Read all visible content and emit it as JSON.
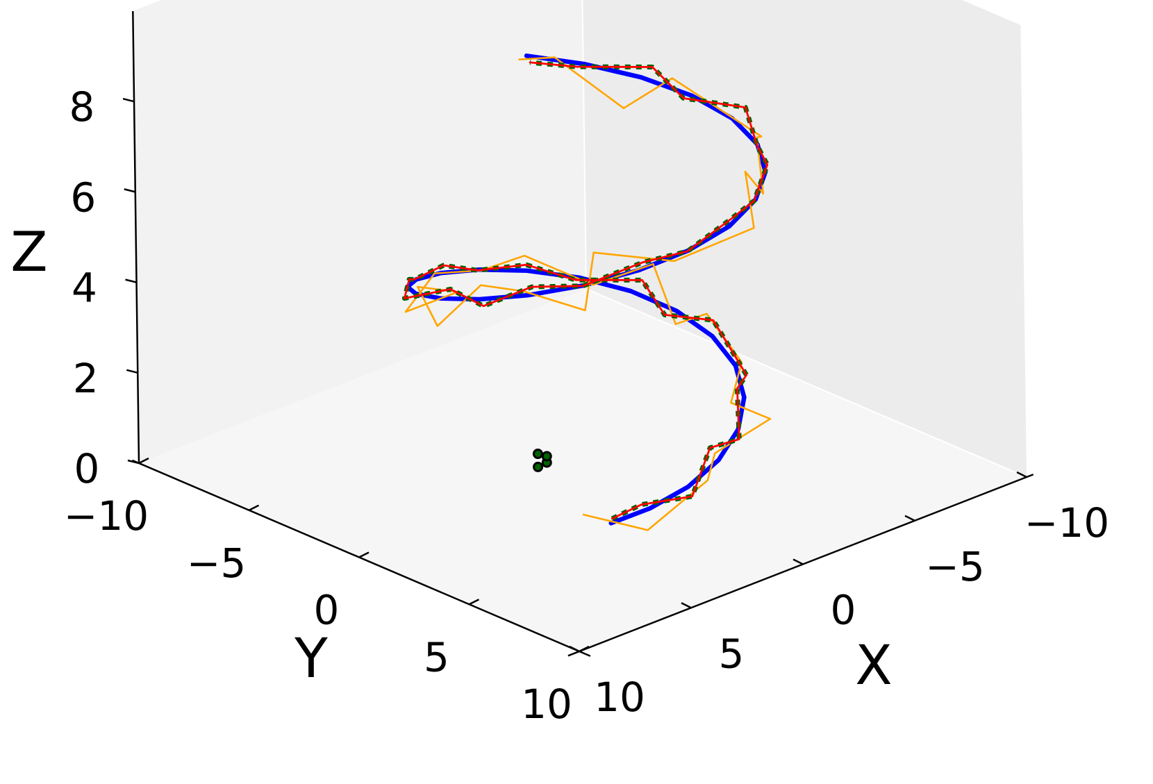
{
  "chart_data": {
    "type": "line3d",
    "xlabel": "X",
    "ylabel": "Y",
    "zlabel": "Z",
    "x_ticks": [
      "−10",
      "−5",
      "0",
      "5",
      "10"
    ],
    "y_ticks": [
      "−10",
      "−5",
      "0",
      "5",
      "10"
    ],
    "z_ticks": [
      "0",
      "2",
      "4",
      "6",
      "8"
    ],
    "xlim": [
      -10,
      10
    ],
    "ylim": [
      -10,
      10
    ],
    "zlim": [
      0,
      9
    ],
    "grid": false,
    "legend": "none",
    "colors": {
      "true_path": "#0000ff",
      "noisy_observations": "#ffa500",
      "filtered_estimate": "#ff0000",
      "smoothed_estimate": "#006400",
      "marker": "#000000",
      "pane_back": "#f2f2f2",
      "pane_side": "#ececec",
      "pane_floor": "#f6f6f6"
    },
    "series": [
      {
        "style": "solid-thick",
        "color": "#0000ff",
        "x": [
          2.98,
          1.87,
          0.42,
          -1.15,
          -2.66,
          -3.95,
          -4.87,
          -5.32,
          -5.25,
          -4.65,
          -3.57,
          -2.11,
          -0.44,
          1.26,
          2.8,
          4.03,
          4.83,
          5.12,
          4.88,
          4.13,
          2.93,
          1.42,
          -0.24,
          -1.89,
          -3.35,
          -4.49,
          -5.19,
          -5.4,
          -5.09,
          -4.29,
          -3.07,
          -1.56
        ],
        "y": [
          4.32,
          4.97,
          5.23,
          5.03,
          4.39,
          3.36,
          2.04,
          0.54,
          -1.01,
          -2.47,
          -3.7,
          -4.59,
          -5.05,
          -5.06,
          -4.61,
          -3.76,
          -2.56,
          -1.13,
          0.39,
          1.85,
          3.13,
          4.12,
          4.73,
          4.9,
          4.62,
          3.92,
          2.85,
          1.5,
          0.0,
          -1.5,
          -2.85,
          -3.92
        ],
        "z": [
          0.3,
          0.55,
          0.8,
          1.05,
          1.3,
          1.55,
          1.8,
          2.05,
          2.3,
          2.55,
          2.8,
          3.05,
          3.3,
          3.55,
          3.8,
          4.05,
          4.3,
          4.55,
          4.8,
          5.05,
          5.3,
          5.55,
          5.8,
          6.05,
          6.3,
          6.55,
          6.8,
          7.05,
          7.3,
          7.55,
          7.8,
          8.05
        ]
      },
      {
        "style": "solid-thin",
        "color": "#ffa500",
        "x": [
          3.4,
          2.5,
          0.1,
          -1.8,
          -3.5,
          -4.2,
          -4.7,
          -5.8,
          -5.0,
          -5.3,
          -3.0,
          -2.5,
          0.3,
          1.8,
          3.6,
          3.5,
          4.9,
          5.6,
          5.3,
          3.9,
          3.5,
          2.6,
          -0.3,
          -2.5,
          -3.9,
          -4.1,
          -5.8,
          -6.2,
          -4.6,
          -3.3,
          -2.5,
          -1.8
        ],
        "y": [
          3.5,
          5.5,
          5.8,
          4.2,
          5.0,
          2.5,
          2.5,
          -0.2,
          -0.8,
          -2.1,
          -2.5,
          -5.1,
          -4.2,
          -4.8,
          -4.3,
          -2.0,
          -2.4,
          -0.8,
          0.9,
          1.4,
          3.8,
          3.3,
          4.0,
          5.4,
          3.6,
          4.2,
          2.2,
          2.0,
          -0.4,
          -1.3,
          -3.6,
          -4.5
        ],
        "z": [
          0.4,
          0.3,
          1.0,
          0.9,
          1.5,
          1.2,
          2.0,
          2.3,
          2.1,
          3.1,
          3.0,
          3.2,
          3.6,
          3.7,
          3.3,
          4.2,
          4.5,
          4.1,
          5.3,
          5.0,
          5.0,
          6.0,
          5.4,
          6.0,
          6.6,
          6.2,
          6.7,
          6.6,
          7.7,
          7.1,
          7.9,
          7.8
        ]
      },
      {
        "style": "solid-medium",
        "color": "#ff0000",
        "x": [
          3.2,
          2.0,
          0.6,
          -1.0,
          -2.4,
          -3.9,
          -5.1,
          -5.6,
          -5.0,
          -4.9,
          -3.6,
          -1.8,
          -0.6,
          1.4,
          2.6,
          4.2,
          5.1,
          5.0,
          4.9,
          4.2,
          2.7,
          1.5,
          -0.4,
          -1.6,
          -3.5,
          -4.3,
          -5.4,
          -5.7,
          -5.0,
          -4.5,
          -3.0,
          -1.4
        ],
        "y": [
          4.6,
          4.7,
          5.6,
          4.8,
          4.7,
          3.1,
          2.3,
          0.3,
          -1.3,
          -2.2,
          -3.9,
          -4.3,
          -5.3,
          -4.8,
          -4.9,
          -3.5,
          -2.8,
          -0.8,
          0.6,
          2.1,
          2.9,
          4.4,
          4.5,
          5.2,
          4.4,
          4.2,
          2.6,
          1.8,
          -0.3,
          -1.2,
          -3.1,
          -3.6
        ],
        "z": [
          0.5,
          0.6,
          0.7,
          1.3,
          1.2,
          1.7,
          1.6,
          2.3,
          2.2,
          2.8,
          2.7,
          3.3,
          3.2,
          3.8,
          3.7,
          4.3,
          4.2,
          4.8,
          4.7,
          5.3,
          5.2,
          5.8,
          5.7,
          6.3,
          6.2,
          6.8,
          6.7,
          7.3,
          7.2,
          7.8,
          7.7,
          8.0
        ]
      },
      {
        "style": "dotted-thick",
        "color": "#006400",
        "x": [
          3.2,
          2.0,
          0.6,
          -1.0,
          -2.4,
          -3.9,
          -5.1,
          -5.6,
          -5.0,
          -4.9,
          -3.6,
          -1.8,
          -0.6,
          1.4,
          2.6,
          4.2,
          5.1,
          5.0,
          4.9,
          4.2,
          2.7,
          1.5,
          -0.4,
          -1.6,
          -3.5,
          -4.3,
          -5.4,
          -5.7,
          -5.0,
          -4.5,
          -3.0,
          -1.4
        ],
        "y": [
          4.6,
          4.7,
          5.6,
          4.8,
          4.7,
          3.1,
          2.3,
          0.3,
          -1.3,
          -2.2,
          -3.9,
          -4.3,
          -5.3,
          -4.8,
          -4.9,
          -3.5,
          -2.8,
          -0.8,
          0.6,
          2.1,
          2.9,
          4.4,
          4.5,
          5.2,
          4.4,
          4.2,
          2.6,
          1.8,
          -0.3,
          -1.2,
          -3.1,
          -3.6
        ],
        "z": [
          0.5,
          0.6,
          0.7,
          1.3,
          1.2,
          1.7,
          1.6,
          2.3,
          2.2,
          2.8,
          2.7,
          3.3,
          3.2,
          3.8,
          3.7,
          4.3,
          4.2,
          4.8,
          4.7,
          5.3,
          5.2,
          5.8,
          5.7,
          6.3,
          6.2,
          6.8,
          6.7,
          7.3,
          7.2,
          7.8,
          7.7,
          8.0
        ]
      }
    ],
    "markers": [
      {
        "x": 5.1,
        "y": 3.6,
        "z": 1.9
      },
      {
        "x": 5.3,
        "y": 3.4,
        "z": 1.8
      },
      {
        "x": 5.2,
        "y": 3.3,
        "z": 2.05
      },
      {
        "x": 5.0,
        "y": 3.5,
        "z": 2.0
      }
    ]
  }
}
